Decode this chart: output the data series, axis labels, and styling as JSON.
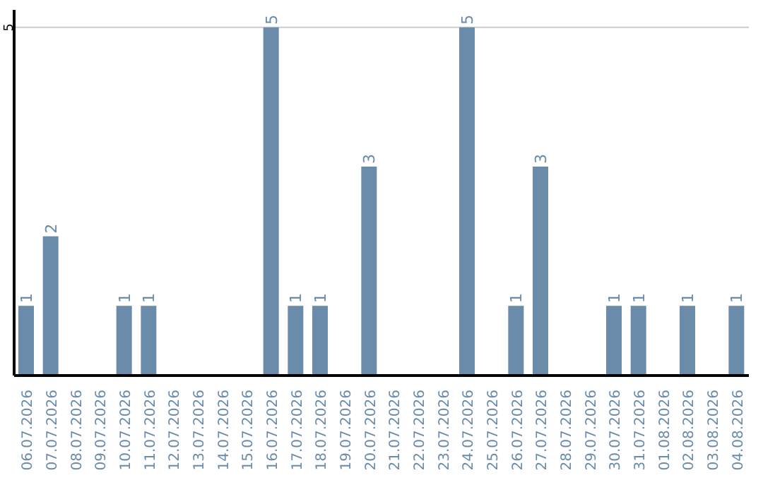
{
  "chart_data": {
    "type": "bar",
    "categories": [
      "06.07.2026",
      "07.07.2026",
      "08.07.2026",
      "09.07.2026",
      "10.07.2026",
      "11.07.2026",
      "12.07.2026",
      "13.07.2026",
      "14.07.2026",
      "15.07.2026",
      "16.07.2026",
      "17.07.2026",
      "18.07.2026",
      "19.07.2026",
      "20.07.2026",
      "21.07.2026",
      "22.07.2026",
      "23.07.2026",
      "24.07.2026",
      "25.07.2026",
      "26.07.2026",
      "27.07.2026",
      "28.07.2026",
      "29.07.2026",
      "30.07.2026",
      "31.07.2026",
      "01.08.2026",
      "02.08.2026",
      "03.08.2026",
      "04.08.2026"
    ],
    "values": [
      1,
      2,
      0,
      0,
      1,
      1,
      0,
      0,
      0,
      0,
      5,
      1,
      1,
      0,
      3,
      0,
      0,
      0,
      5,
      0,
      1,
      3,
      0,
      0,
      1,
      1,
      0,
      1,
      0,
      1
    ],
    "value_labels": [
      "1",
      "2",
      null,
      null,
      "1",
      "1",
      null,
      null,
      null,
      null,
      "5",
      "1",
      "1",
      null,
      "3",
      null,
      null,
      null,
      "5",
      null,
      "1",
      "3",
      null,
      null,
      "1",
      "1",
      null,
      "1",
      null,
      "1"
    ],
    "color": "#6a8caa",
    "ylim": [
      0,
      5.25
    ],
    "yticks": [
      5
    ],
    "grid": "y"
  }
}
